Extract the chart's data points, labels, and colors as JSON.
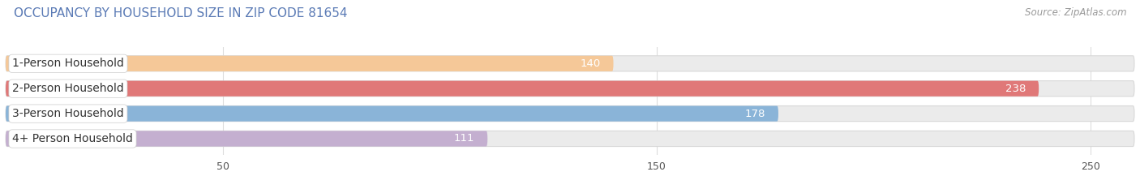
{
  "title": "OCCUPANCY BY HOUSEHOLD SIZE IN ZIP CODE 81654",
  "source": "Source: ZipAtlas.com",
  "categories": [
    "1-Person Household",
    "2-Person Household",
    "3-Person Household",
    "4+ Person Household"
  ],
  "values": [
    140,
    238,
    178,
    111
  ],
  "bar_colors": [
    "#f5c898",
    "#e07878",
    "#8ab4d8",
    "#c4afd0"
  ],
  "xlim": [
    0,
    260
  ],
  "xticks": [
    50,
    150,
    250
  ],
  "label_fontsize": 10,
  "value_fontsize": 9.5,
  "title_fontsize": 11,
  "source_fontsize": 8.5,
  "bar_height": 0.62,
  "track_color": "#ebebeb",
  "label_bg_color": "#ffffff",
  "fig_bg_color": "#ffffff",
  "title_color": "#5a7ab5",
  "source_color": "#999999",
  "value_color_inside": "#ffffff",
  "value_color_outside": "#666666"
}
